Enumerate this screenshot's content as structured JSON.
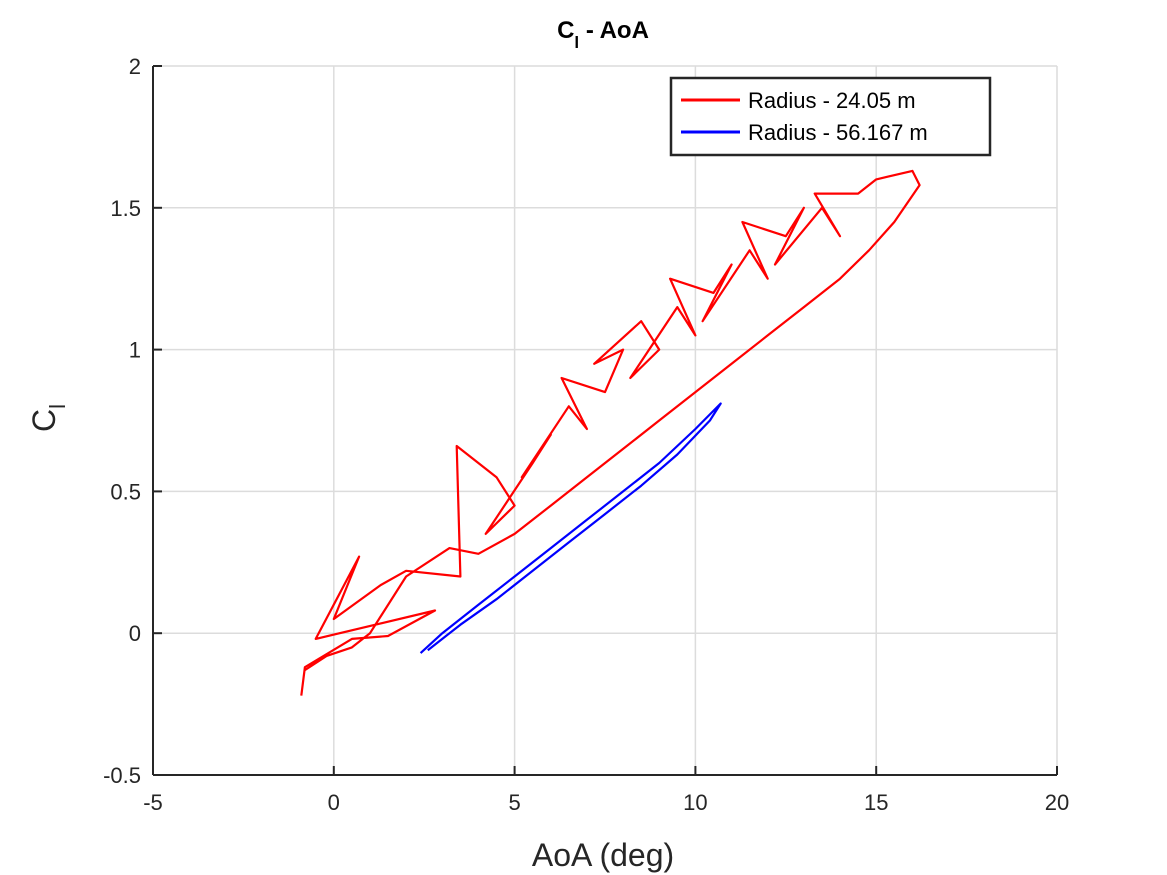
{
  "chart_data": {
    "type": "line",
    "title": {
      "base": "C",
      "sub": "l",
      "rest": " - AoA"
    },
    "xlabel": "AoA (deg)",
    "ylabel": {
      "base": "C",
      "sub": "l"
    },
    "xlim": [
      -5,
      20
    ],
    "ylim": [
      -0.5,
      2
    ],
    "xticks": [
      -5,
      0,
      5,
      10,
      15,
      20
    ],
    "yticks": [
      -0.5,
      0,
      0.5,
      1,
      1.5,
      2
    ],
    "xtick_labels": [
      "-5",
      "0",
      "5",
      "10",
      "15",
      "20"
    ],
    "ytick_labels": [
      "-0.5",
      "0",
      "0.5",
      "1",
      "1.5",
      "2"
    ],
    "grid": true,
    "legend_position": "top-right",
    "series": [
      {
        "name": "Radius - 24.05 m",
        "color": "#ff0000",
        "path": [
          [
            -0.9,
            -0.22
          ],
          [
            -0.8,
            -0.12
          ],
          [
            0.5,
            -0.02
          ],
          [
            1.5,
            -0.01
          ],
          [
            2.8,
            0.08
          ],
          [
            -0.5,
            -0.02
          ],
          [
            0.7,
            0.27
          ],
          [
            0.0,
            0.05
          ],
          [
            1.3,
            0.17
          ],
          [
            2.0,
            0.22
          ],
          [
            3.5,
            0.2
          ],
          [
            3.4,
            0.66
          ],
          [
            4.5,
            0.55
          ],
          [
            5.0,
            0.45
          ],
          [
            4.2,
            0.35
          ],
          [
            5.5,
            0.6
          ],
          [
            6.0,
            0.7
          ],
          [
            5.2,
            0.55
          ],
          [
            6.5,
            0.8
          ],
          [
            7.0,
            0.72
          ],
          [
            6.3,
            0.9
          ],
          [
            7.5,
            0.85
          ],
          [
            8.0,
            1.0
          ],
          [
            7.2,
            0.95
          ],
          [
            8.5,
            1.1
          ],
          [
            9.0,
            1.0
          ],
          [
            8.2,
            0.9
          ],
          [
            9.5,
            1.15
          ],
          [
            10.0,
            1.05
          ],
          [
            9.3,
            1.25
          ],
          [
            10.5,
            1.2
          ],
          [
            11.0,
            1.3
          ],
          [
            10.2,
            1.1
          ],
          [
            11.5,
            1.35
          ],
          [
            12.0,
            1.25
          ],
          [
            11.3,
            1.45
          ],
          [
            12.5,
            1.4
          ],
          [
            13.0,
            1.5
          ],
          [
            12.2,
            1.3
          ],
          [
            13.5,
            1.5
          ],
          [
            14.0,
            1.4
          ],
          [
            13.3,
            1.55
          ],
          [
            14.5,
            1.55
          ],
          [
            15.0,
            1.6
          ],
          [
            16.0,
            1.63
          ],
          [
            16.2,
            1.58
          ],
          [
            15.5,
            1.45
          ],
          [
            14.8,
            1.35
          ],
          [
            14.0,
            1.25
          ],
          [
            13.0,
            1.15
          ],
          [
            12.0,
            1.05
          ],
          [
            11.0,
            0.95
          ],
          [
            10.0,
            0.85
          ],
          [
            9.0,
            0.75
          ],
          [
            8.0,
            0.65
          ],
          [
            7.0,
            0.55
          ],
          [
            6.0,
            0.45
          ],
          [
            5.0,
            0.35
          ],
          [
            4.0,
            0.28
          ],
          [
            3.2,
            0.3
          ],
          [
            2.0,
            0.2
          ],
          [
            1.0,
            0.0
          ],
          [
            0.5,
            -0.05
          ],
          [
            -0.2,
            -0.08
          ],
          [
            -0.8,
            -0.13
          ]
        ]
      },
      {
        "name": "Radius - 56.167 m",
        "color": "#0000ff",
        "path": [
          [
            2.4,
            -0.07
          ],
          [
            3.0,
            0.0
          ],
          [
            4.0,
            0.1
          ],
          [
            5.0,
            0.2
          ],
          [
            6.0,
            0.3
          ],
          [
            7.0,
            0.4
          ],
          [
            8.0,
            0.5
          ],
          [
            9.0,
            0.6
          ],
          [
            10.0,
            0.72
          ],
          [
            10.7,
            0.81
          ],
          [
            10.4,
            0.75
          ],
          [
            9.5,
            0.63
          ],
          [
            8.5,
            0.52
          ],
          [
            7.5,
            0.42
          ],
          [
            6.5,
            0.32
          ],
          [
            5.5,
            0.22
          ],
          [
            4.5,
            0.12
          ],
          [
            3.5,
            0.03
          ],
          [
            2.6,
            -0.06
          ]
        ]
      }
    ]
  }
}
